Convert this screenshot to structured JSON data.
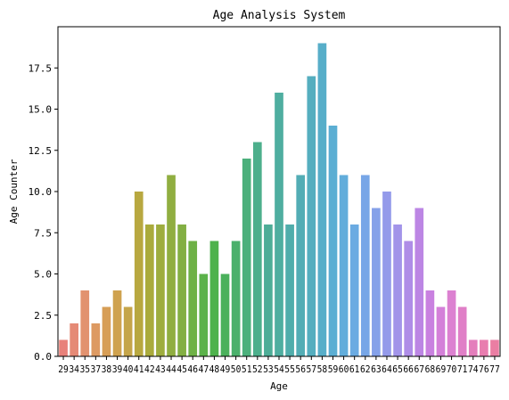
{
  "chart_data": {
    "type": "bar",
    "title": "Age Analysis System",
    "xlabel": "Age",
    "ylabel": "Age Counter",
    "ylim": [
      0,
      20
    ],
    "yticks": [
      "0.0",
      "2.5",
      "5.0",
      "7.5",
      "10.0",
      "12.5",
      "15.0",
      "17.5"
    ],
    "grid": false,
    "legend": "none",
    "categories": [
      "29",
      "34",
      "35",
      "37",
      "38",
      "39",
      "40",
      "41",
      "42",
      "43",
      "44",
      "45",
      "46",
      "47",
      "48",
      "49",
      "50",
      "51",
      "52",
      "53",
      "54",
      "55",
      "56",
      "57",
      "58",
      "59",
      "60",
      "61",
      "62",
      "63",
      "64",
      "65",
      "66",
      "67",
      "68",
      "69",
      "70",
      "71",
      "74",
      "76",
      "77"
    ],
    "values": [
      1,
      2,
      4,
      2,
      3,
      4,
      3,
      10,
      8,
      8,
      11,
      8,
      7,
      5,
      7,
      5,
      7,
      12,
      13,
      8,
      16,
      8,
      11,
      17,
      19,
      14,
      11,
      8,
      11,
      9,
      10,
      8,
      7,
      9,
      4,
      3,
      4,
      3,
      1,
      1,
      1
    ],
    "colors": [
      "#E8817A",
      "#E58A76",
      "#E2926F",
      "#DD9A62",
      "#D79E56",
      "#CFA24F",
      "#C5A54A",
      "#B8A840",
      "#AAAB3C",
      "#9EAD3E",
      "#90AE41",
      "#83AF43",
      "#6EB146",
      "#5BB24A",
      "#4EB24C",
      "#4BB15C",
      "#4BB06C",
      "#4CB07C",
      "#4DAF8C",
      "#4EAD97",
      "#4FAEA0",
      "#50ADAB",
      "#53ADB5",
      "#55AEBF",
      "#57AEC9",
      "#5BAED3",
      "#62ADDB",
      "#6BABE2",
      "#77A6E7",
      "#85A1E9",
      "#949AEA",
      "#A294E9",
      "#AF8DE7",
      "#BC86E4",
      "#C981E0",
      "#D480D9",
      "#DC81D1",
      "#E07FC7",
      "#E47EBC",
      "#E87DAF",
      "#EA7EA3"
    ]
  }
}
